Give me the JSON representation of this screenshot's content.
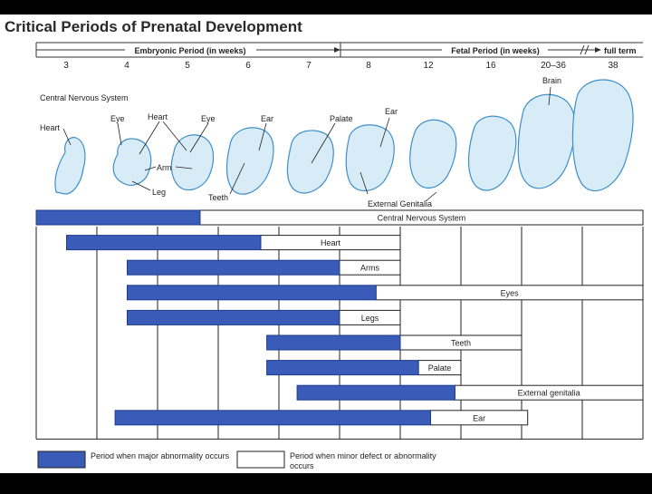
{
  "title": "Critical Periods of Prenatal Development",
  "header": {
    "embryonic_label": "Embryonic Period (in weeks)",
    "fetal_label": "Fetal Period (in weeks)",
    "full_term_label": "full term",
    "weeks": [
      "3",
      "4",
      "5",
      "6",
      "7",
      "8",
      "12",
      "16",
      "20–36",
      "38"
    ]
  },
  "illustration_labels": [
    {
      "id": "cns",
      "text": "Central Nervous System"
    },
    {
      "id": "heart1",
      "text": "Heart"
    },
    {
      "id": "eye1",
      "text": "Eye"
    },
    {
      "id": "heart2",
      "text": "Heart"
    },
    {
      "id": "eye2",
      "text": "Eye"
    },
    {
      "id": "arm",
      "text": "Arm"
    },
    {
      "id": "leg",
      "text": "Leg"
    },
    {
      "id": "ear1",
      "text": "Ear"
    },
    {
      "id": "teeth",
      "text": "Teeth"
    },
    {
      "id": "palate",
      "text": "Palate"
    },
    {
      "id": "ear2",
      "text": "Ear"
    },
    {
      "id": "genitalia",
      "text": "External Genitalia"
    },
    {
      "id": "brain",
      "text": "Brain"
    }
  ],
  "chart_data": {
    "type": "gantt",
    "x_categories": [
      "3",
      "4",
      "5",
      "6",
      "7",
      "8",
      "12",
      "16",
      "20–36",
      "38"
    ],
    "rows": [
      {
        "label": "Central Nervous System",
        "major": [
          0.0,
          2.7
        ],
        "minor": [
          2.7,
          10.0
        ]
      },
      {
        "label": "Heart",
        "major": [
          0.5,
          3.7
        ],
        "minor": [
          3.7,
          6.0
        ]
      },
      {
        "label": "Arms",
        "major": [
          1.5,
          5.0
        ],
        "minor": [
          5.0,
          6.0
        ]
      },
      {
        "label": "Eyes",
        "major": [
          1.5,
          5.6
        ],
        "minor": [
          5.6,
          10.0
        ]
      },
      {
        "label": "Legs",
        "major": [
          1.5,
          5.0
        ],
        "minor": [
          5.0,
          6.0
        ]
      },
      {
        "label": "Teeth",
        "major": [
          3.8,
          6.0
        ],
        "minor": [
          6.0,
          8.0
        ]
      },
      {
        "label": "Palate",
        "major": [
          3.8,
          6.3
        ],
        "minor": [
          6.3,
          7.0
        ]
      },
      {
        "label": "External genitalia",
        "major": [
          4.3,
          6.9
        ],
        "minor": [
          6.9,
          10.0
        ]
      },
      {
        "label": "Ear",
        "major": [
          1.3,
          6.5
        ],
        "minor": [
          6.5,
          8.1
        ]
      }
    ],
    "legend": [
      {
        "key": "major",
        "label": "Period when major abnormality occurs",
        "color": "#3a5cb8"
      },
      {
        "key": "minor",
        "label": "Period when minor defect or abnormality occurs",
        "color": "#ffffff"
      }
    ]
  },
  "colors": {
    "major_bar": "#3a5cb8",
    "embryo_fill": "#d8ecf7",
    "embryo_stroke": "#3f8ec9"
  }
}
